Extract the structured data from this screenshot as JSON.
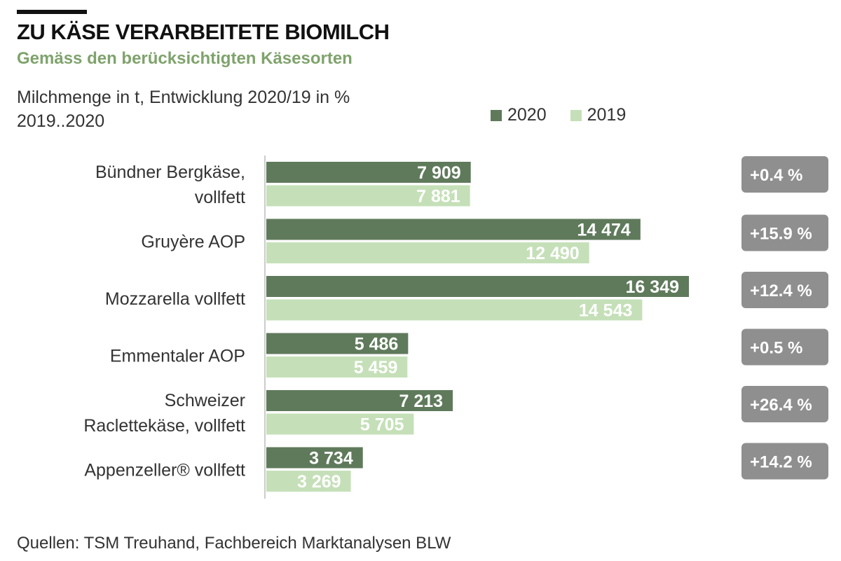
{
  "header": {
    "title": "ZU KÄSE VERARBEITETE BIOMILCH",
    "subtitle": "Gemäss den berücksichtigten  Käsesorten",
    "units_line1": "Milchmenge  in t, Entwicklung 2020/19  in %",
    "units_line2": "2019..2020"
  },
  "source": "Quellen: TSM Treuhand,  Fachbereich  Marktanalysen  BLW",
  "colors": {
    "series_2020": "#5f7a5b",
    "series_2019": "#c5e0b8",
    "badge": "#8f8f8f",
    "axis": "#cccccc"
  },
  "chart_data": {
    "type": "bar",
    "orientation": "horizontal",
    "title": "ZU KÄSE VERARBEITETE BIOMILCH",
    "subtitle": "Gemäss den berücksichtigten  Käsesorten",
    "categories": [
      [
        "Bündner Bergkäse,",
        "vollfett"
      ],
      [
        "Gruyère AOP"
      ],
      [
        "Mozzarella vollfett"
      ],
      [
        "Emmentaler AOP"
      ],
      [
        "Schweizer",
        "Raclettekäse, vollfett"
      ],
      [
        "Appenzeller® vollfett"
      ]
    ],
    "series": [
      {
        "name": "2020",
        "values": [
          7909,
          14474,
          16349,
          5486,
          7213,
          3734
        ],
        "labels": [
          "7 909",
          "14 474",
          "16 349",
          "5 486",
          "7 213",
          "3 734"
        ]
      },
      {
        "name": "2019",
        "values": [
          7881,
          12490,
          14543,
          5459,
          5705,
          3269
        ],
        "labels": [
          "7 881",
          "12 490",
          "14 543",
          "5 459",
          "5 705",
          "3 269"
        ]
      }
    ],
    "change_labels": [
      "+0.4 %",
      "+15.9 %",
      "+12.4 %",
      "+0.5 %",
      "+26.4 %",
      "+14.2 %"
    ],
    "xlim": [
      0,
      18000
    ],
    "grid": false,
    "legend_position": "top-right"
  }
}
